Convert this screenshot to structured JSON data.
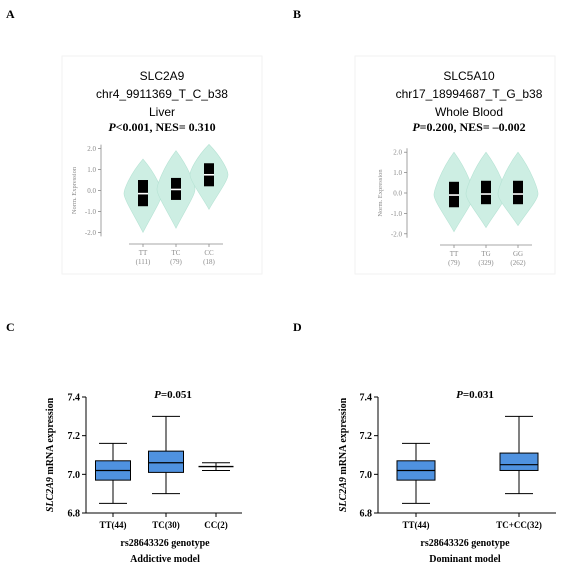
{
  "colors": {
    "violin": "#cdeee3",
    "violin_stroke": "#b6e3d4",
    "box_fill": "#4f92e0",
    "axis": "#000000",
    "light_axis": "#8a8a8a",
    "light_text": "#8a8a8a"
  },
  "panels": {
    "A": {
      "letter": "A",
      "gene": "SLC2A9",
      "variant": "chr4_9911369_T_C_b38",
      "tissue": "Liver",
      "stat_p": "P",
      "stat_rest": "<0.001, NES= 0.310"
    },
    "B": {
      "letter": "B",
      "gene": "SLC5A10",
      "variant": "chr17_18994687_T_G_b38",
      "tissue": "Whole Blood",
      "stat_p": "P",
      "stat_rest": "=0.200, NES= –0.002"
    },
    "C": {
      "letter": "C",
      "stat_p": "P",
      "stat_rest": "=0.051",
      "xlabel": "rs28643326 genotype",
      "model": "Addictive model"
    },
    "D": {
      "letter": "D",
      "stat_p": "P",
      "stat_rest": "=0.031",
      "xlabel": "rs28643326 genotype",
      "model": "Dominant model"
    }
  },
  "chart_data": [
    {
      "panel": "A",
      "type": "violin",
      "ylabel": "Norm. Expression",
      "ylim": [
        -2.6,
        2.6
      ],
      "yticks": [
        "2.0",
        "1.0",
        "0.0",
        "-1.0",
        "-2.0"
      ],
      "ytick_values": [
        2.0,
        1.0,
        0.0,
        -1.0,
        -2.0
      ],
      "categories": [
        "TT",
        "TC",
        "CC"
      ],
      "counts": [
        "(111)",
        "(79)",
        "(18)"
      ],
      "violins": [
        {
          "category": "TT",
          "min": -2.0,
          "max": 1.5,
          "median": -0.15,
          "q1": -0.75,
          "q3": 0.5
        },
        {
          "category": "TC",
          "min": -1.8,
          "max": 1.9,
          "median": 0.05,
          "q1": -0.45,
          "q3": 0.6
        },
        {
          "category": "CC",
          "min": -0.9,
          "max": 2.2,
          "median": 0.75,
          "q1": 0.2,
          "q3": 1.3
        }
      ]
    },
    {
      "panel": "B",
      "type": "violin",
      "ylabel": "Norm. Expression",
      "ylim": [
        -2.6,
        2.6
      ],
      "yticks": [
        "2.0",
        "1.0",
        "0.0",
        "-1.0",
        "-2.0"
      ],
      "ytick_values": [
        2.0,
        1.0,
        0.0,
        -1.0,
        -2.0
      ],
      "categories": [
        "TT",
        "TG",
        "GG"
      ],
      "counts": [
        "(79)",
        "(329)",
        "(262)"
      ],
      "violins": [
        {
          "category": "TT",
          "min": -1.9,
          "max": 2.0,
          "median": -0.1,
          "q1": -0.7,
          "q3": 0.55
        },
        {
          "category": "TG",
          "min": -1.7,
          "max": 2.0,
          "median": -0.05,
          "q1": -0.55,
          "q3": 0.6
        },
        {
          "category": "GG",
          "min": -1.6,
          "max": 2.0,
          "median": -0.05,
          "q1": -0.55,
          "q3": 0.6
        }
      ]
    },
    {
      "panel": "C",
      "type": "box",
      "ylabel_italic": "SLC2A9",
      "ylabel_rest": " mRNA expression",
      "ylim": [
        6.8,
        7.4
      ],
      "yticks": [
        "6.8",
        "7.0",
        "7.2",
        "7.4"
      ],
      "ytick_values": [
        6.8,
        7.0,
        7.2,
        7.4
      ],
      "categories": [
        "TT(44)",
        "TC(30)",
        "CC(2)"
      ],
      "boxes": [
        {
          "category": "TT(44)",
          "min": 6.85,
          "q1": 6.97,
          "median": 7.02,
          "q3": 7.07,
          "max": 7.16
        },
        {
          "category": "TC(30)",
          "min": 6.9,
          "q1": 7.01,
          "median": 7.06,
          "q3": 7.12,
          "max": 7.3
        },
        {
          "category": "CC(2)",
          "min": 7.02,
          "q1": 7.04,
          "median": 7.04,
          "q3": 7.05,
          "max": 7.06
        }
      ]
    },
    {
      "panel": "D",
      "type": "box",
      "ylabel_italic": "SLC2A9",
      "ylabel_rest": " mRNA expression",
      "ylim": [
        6.8,
        7.4
      ],
      "yticks": [
        "6.8",
        "7.0",
        "7.2",
        "7.4"
      ],
      "ytick_values": [
        6.8,
        7.0,
        7.2,
        7.4
      ],
      "categories": [
        "TT(44)",
        "TC+CC(32)"
      ],
      "boxes": [
        {
          "category": "TT(44)",
          "min": 6.85,
          "q1": 6.97,
          "median": 7.02,
          "q3": 7.07,
          "max": 7.16
        },
        {
          "category": "TC+CC(32)",
          "min": 6.9,
          "q1": 7.02,
          "median": 7.05,
          "q3": 7.11,
          "max": 7.3
        }
      ]
    }
  ]
}
